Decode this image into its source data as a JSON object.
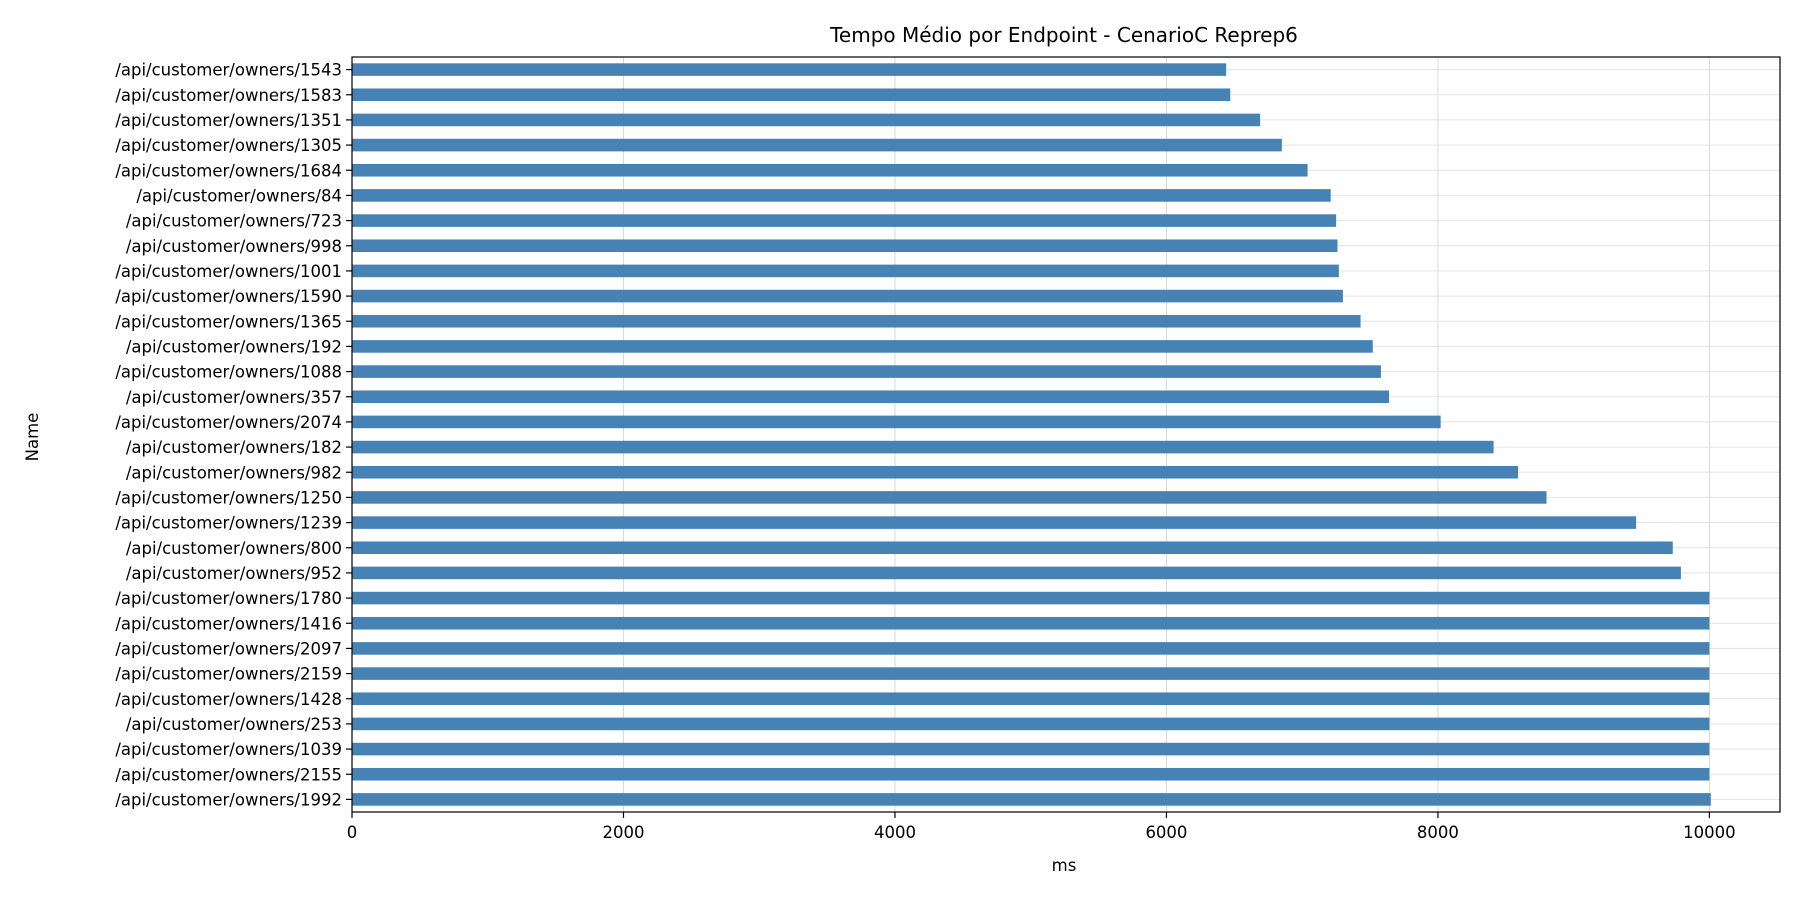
{
  "chart_data": {
    "type": "bar",
    "orientation": "horizontal",
    "title": "Tempo Médio por Endpoint - CenarioC Reprep6",
    "xlabel": "ms",
    "ylabel": "Name",
    "xlim": [
      0,
      10520
    ],
    "xticks": [
      0,
      2000,
      4000,
      6000,
      8000,
      10000
    ],
    "grid": true,
    "bar_color": "#4682b4",
    "categories": [
      "/api/customer/owners/1543",
      "/api/customer/owners/1583",
      "/api/customer/owners/1351",
      "/api/customer/owners/1305",
      "/api/customer/owners/1684",
      "/api/customer/owners/84",
      "/api/customer/owners/723",
      "/api/customer/owners/998",
      "/api/customer/owners/1001",
      "/api/customer/owners/1590",
      "/api/customer/owners/1365",
      "/api/customer/owners/192",
      "/api/customer/owners/1088",
      "/api/customer/owners/357",
      "/api/customer/owners/2074",
      "/api/customer/owners/182",
      "/api/customer/owners/982",
      "/api/customer/owners/1250",
      "/api/customer/owners/1239",
      "/api/customer/owners/800",
      "/api/customer/owners/952",
      "/api/customer/owners/1780",
      "/api/customer/owners/1416",
      "/api/customer/owners/2097",
      "/api/customer/owners/2159",
      "/api/customer/owners/1428",
      "/api/customer/owners/253",
      "/api/customer/owners/1039",
      "/api/customer/owners/2155",
      "/api/customer/owners/1992"
    ],
    "values": [
      6440,
      6470,
      6690,
      6850,
      7040,
      7210,
      7250,
      7260,
      7270,
      7300,
      7430,
      7520,
      7580,
      7640,
      8020,
      8410,
      8590,
      8800,
      9460,
      9730,
      9790,
      10000,
      10000,
      10000,
      10000,
      10000,
      10000,
      10000,
      10000,
      10010
    ]
  }
}
